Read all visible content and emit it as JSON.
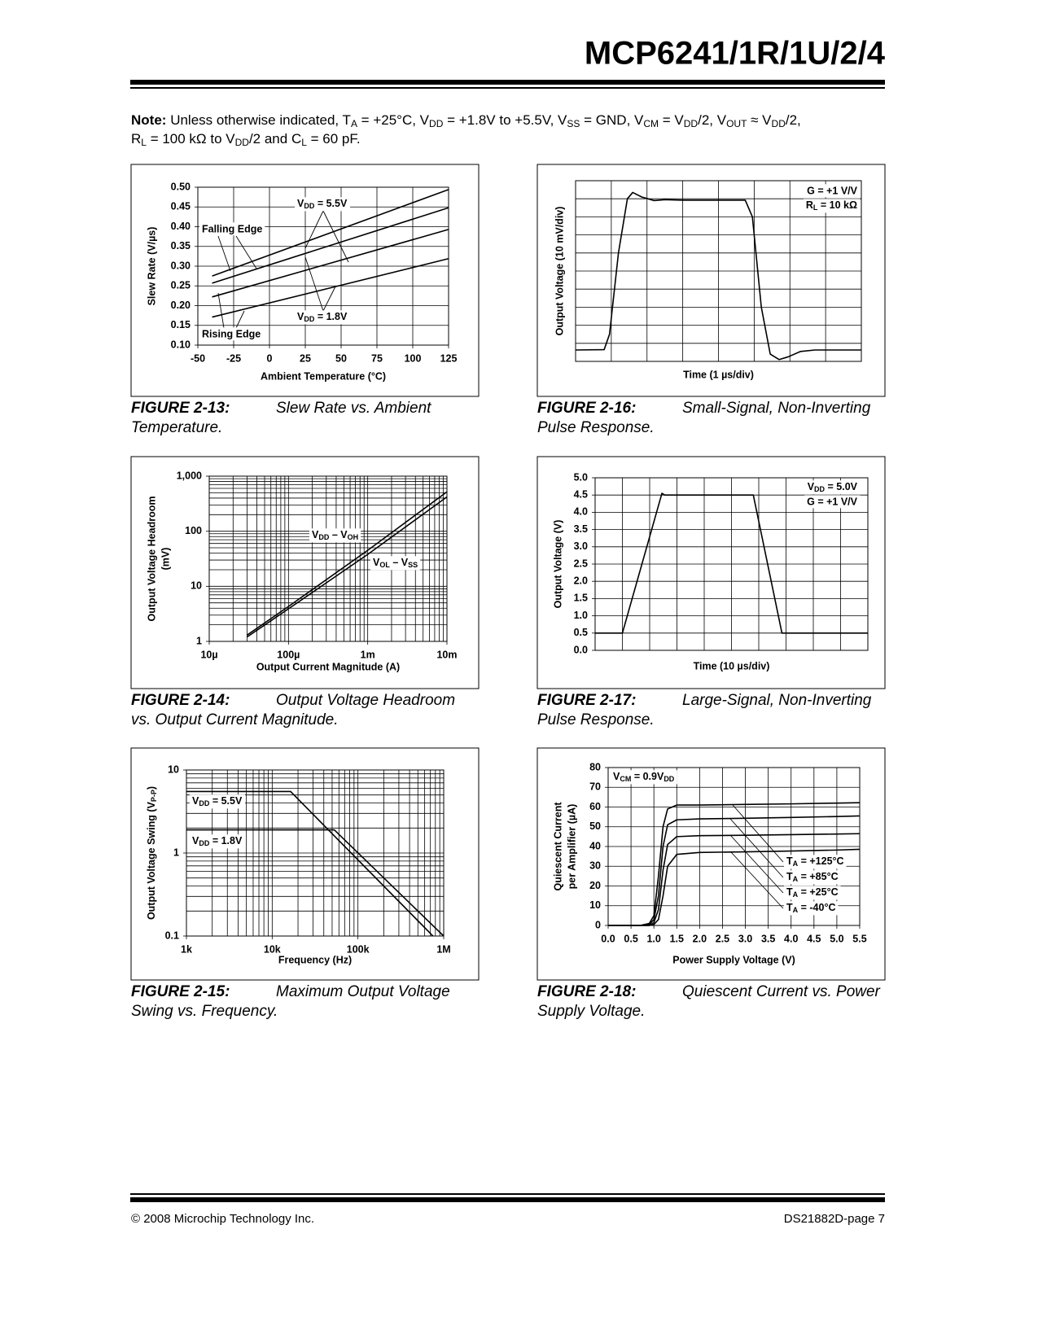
{
  "header": {
    "title": "MCP6241/1R/1U/2/4"
  },
  "note": {
    "label": "Note:",
    "lines": [
      [
        "Unless otherwise indicated, T",
        "A",
        " = +25°C, V",
        "DD",
        " = +1.8V to +5.5V, V",
        "SS",
        " = GND, V",
        "CM",
        " = V",
        "DD",
        "/2, V",
        "OUT",
        " ≈ V",
        "DD",
        "/2,"
      ],
      [
        "R",
        "L",
        " = 100 kΩ to V",
        "DD",
        "/2 and C",
        "L",
        " = 60 pF."
      ]
    ]
  },
  "chart_data": [
    {
      "type": "line",
      "figure": "FIGURE 2-13:",
      "caption": "Slew Rate vs. Ambient Temperature.",
      "xlabel": "Ambient Temperature (°C)",
      "ylabel": [
        "Slew Rate (V/µs)"
      ],
      "xlim": [
        -50,
        125
      ],
      "ylim": [
        0.1,
        0.5
      ],
      "xticks": [
        -50,
        -25,
        0,
        25,
        50,
        75,
        100,
        125
      ],
      "yticks": [
        {
          "value": 0.1,
          "label": "0.10"
        },
        0.15,
        {
          "value": 0.2,
          "label": "0.20"
        },
        0.25,
        {
          "value": 0.3,
          "label": "0.30"
        },
        0.35,
        {
          "value": 0.4,
          "label": "0.40"
        },
        0.45,
        {
          "value": 0.5,
          "label": "0.50"
        }
      ],
      "grid": true,
      "color": "#000000",
      "x": [
        -40,
        125
      ],
      "series": [
        {
          "values": [
            0.275,
            0.494
          ]
        },
        {
          "values": [
            0.257,
            0.448
          ]
        },
        {
          "values": [
            0.222,
            0.393
          ]
        },
        {
          "values": [
            0.171,
            0.319
          ]
        }
      ],
      "annotations": [
        "Falling Edge",
        "Rising Edge",
        [
          "V",
          "DD",
          " = 5.5V"
        ],
        [
          "V",
          "DD",
          " = 1.8V"
        ]
      ]
    },
    {
      "type": "line",
      "figure": "FIGURE 2-14:",
      "caption": "Output Voltage Headroom vs. Output Current Magnitude.",
      "xlabel": "Output Current Magnitude (A)",
      "ylabel": [
        "Output Voltage Headroom",
        "(mV)"
      ],
      "xscale": "log",
      "yscale": "log",
      "xlim": [
        1e-05,
        0.01
      ],
      "ylim": [
        1,
        1000
      ],
      "xticks": [
        {
          "value": 1e-05,
          "label": "10µ"
        },
        {
          "value": 0.0001,
          "label": "100µ"
        },
        {
          "value": 0.001,
          "label": "1m"
        },
        {
          "value": 0.01,
          "label": "10m"
        }
      ],
      "yticks": [
        1,
        10,
        100,
        {
          "value": 1000,
          "label": "1,000"
        }
      ],
      "grid": true,
      "color": "#000000",
      "x": [
        3e-05,
        0.0001,
        0.001,
        0.01
      ],
      "series": [
        {
          "name": [
            "V",
            "DD",
            " – V",
            "OH"
          ],
          "values": [
            1.3,
            4.3,
            45,
            520
          ]
        },
        {
          "name": [
            "V",
            "OL",
            " – V",
            "SS"
          ],
          "values": [
            1.2,
            3.9,
            38,
            420
          ]
        }
      ]
    },
    {
      "type": "line",
      "figure": "FIGURE 2-15:",
      "caption": "Maximum Output Voltage Swing vs. Frequency.",
      "xlabel": "Frequency (Hz)",
      "ylabel": [
        [
          "Output Voltage Swing (V",
          "P-P",
          ")"
        ]
      ],
      "xscale": "log",
      "yscale": "log",
      "xlim": [
        1000,
        1000000
      ],
      "ylim": [
        0.1,
        10
      ],
      "xticks": [
        {
          "value": 1000,
          "label": "1k"
        },
        {
          "value": 10000,
          "label": "10k"
        },
        {
          "value": 100000,
          "label": "100k"
        },
        {
          "value": 1000000,
          "label": "1M"
        }
      ],
      "yticks": [
        0.1,
        1,
        10
      ],
      "grid": true,
      "color": "#000000",
      "series": [
        {
          "name": [
            "V",
            "DD",
            " = 5.5V"
          ],
          "x": [
            1000,
            16400,
            750000
          ],
          "values": [
            5.5,
            5.5,
            0.1
          ]
        },
        {
          "name": [
            "V",
            "DD",
            " = 1.8V"
          ],
          "x": [
            1000,
            53000,
            1000000
          ],
          "values": [
            1.9,
            1.9,
            0.1
          ]
        }
      ]
    },
    {
      "type": "line",
      "figure": "FIGURE 2-16:",
      "caption": "Small-Signal, Non-Inverting Pulse Response.",
      "xlabel": "Time (1 µs/div)",
      "ylabel": [
        "Output Voltage (10 mV/div)"
      ],
      "xlim": [
        0,
        8
      ],
      "ylim": [
        0,
        100
      ],
      "xstep": 1,
      "ystep": 10,
      "grid": true,
      "color": "#000000",
      "x": [
        0,
        0.8,
        0.95,
        1.2,
        1.45,
        1.6,
        1.85,
        2.2,
        2.5,
        3,
        4,
        4.75,
        4.95,
        5.2,
        5.45,
        5.7,
        5.95,
        6.3,
        6.7,
        8
      ],
      "values": [
        6.3,
        6.5,
        15,
        60,
        90,
        93.5,
        91,
        89,
        89.5,
        89.2,
        89.2,
        89.2,
        80,
        30,
        4,
        1,
        2.5,
        5.5,
        6.3,
        6.3
      ],
      "annotations": [
        "G = +1 V/V",
        [
          "R",
          "L",
          " = 10 kΩ"
        ]
      ]
    },
    {
      "type": "line",
      "figure": "FIGURE 2-17:",
      "caption": "Large-Signal, Non-Inverting Pulse Response.",
      "xlabel": "Time (10 µs/div)",
      "ylabel": [
        "Output Voltage (V)"
      ],
      "xlim": [
        0,
        100
      ],
      "ylim": [
        0,
        5
      ],
      "xstep": 10,
      "yticks": [
        {
          "value": 0,
          "label": "0.0"
        },
        0.5,
        {
          "value": 1,
          "label": "1.0"
        },
        1.5,
        {
          "value": 2,
          "label": "2.0"
        },
        2.5,
        {
          "value": 3,
          "label": "3.0"
        },
        3.5,
        {
          "value": 4,
          "label": "4.0"
        },
        4.5,
        {
          "value": 5,
          "label": "5.0"
        }
      ],
      "grid": true,
      "color": "#000000",
      "x": [
        0,
        10,
        24.5,
        25.5,
        58,
        68.5,
        100
      ],
      "values": [
        0.5,
        0.5,
        4.55,
        4.5,
        4.5,
        0.5,
        0.5
      ],
      "annotations": [
        [
          "V",
          "DD",
          " = 5.0V"
        ],
        "G = +1 V/V"
      ]
    },
    {
      "type": "line",
      "figure": "FIGURE 2-18:",
      "caption": "Quiescent Current vs. Power Supply Voltage.",
      "xlabel": "Power Supply Voltage (V)",
      "ylabel": [
        "Quiescent Current",
        "per Amplifier (µA)"
      ],
      "xlim": [
        0,
        5.5
      ],
      "ylim": [
        0,
        80
      ],
      "xticks": [
        {
          "value": 0,
          "label": "0.0"
        },
        0.5,
        {
          "value": 1,
          "label": "1.0"
        },
        1.5,
        {
          "value": 2,
          "label": "2.0"
        },
        2.5,
        {
          "value": 3,
          "label": "3.0"
        },
        3.5,
        {
          "value": 4,
          "label": "4.0"
        },
        4.5,
        {
          "value": 5,
          "label": "5.0"
        },
        5.5
      ],
      "yticks": [
        0,
        10,
        20,
        30,
        40,
        50,
        60,
        70,
        80
      ],
      "grid": true,
      "color": "#000000",
      "x": [
        0,
        0.7,
        0.9,
        1,
        1.1,
        1.2,
        1.3,
        1.5,
        2,
        3,
        4,
        5,
        5.5
      ],
      "series": [
        {
          "name": [
            "T",
            "A",
            " = +125°C"
          ],
          "values": [
            0,
            0,
            1,
            5,
            25,
            50,
            59,
            61,
            61,
            61.3,
            61.6,
            62,
            62.2
          ]
        },
        {
          "name": [
            "T",
            "A",
            " = +85°C"
          ],
          "values": [
            0,
            0,
            0.5,
            3,
            15,
            40,
            51,
            53.5,
            54,
            54.3,
            54.7,
            55.2,
            55.5
          ]
        },
        {
          "name": [
            "T",
            "A",
            " = +25°C"
          ],
          "values": [
            0,
            0,
            0,
            1.5,
            8,
            28,
            41,
            45,
            45.5,
            45.7,
            46,
            46.3,
            46.5
          ]
        },
        {
          "name": [
            "T",
            "A",
            " = -40°C"
          ],
          "values": [
            0,
            0,
            0,
            0.5,
            3,
            15,
            30,
            36,
            37,
            37.3,
            37.7,
            38.2,
            38.6
          ]
        }
      ],
      "annotations": [
        [
          "V",
          "CM",
          " = 0.9V",
          "DD"
        ]
      ]
    }
  ],
  "footer": {
    "left": "© 2008 Microchip Technology Inc.",
    "right": "DS21882D-page 7"
  }
}
